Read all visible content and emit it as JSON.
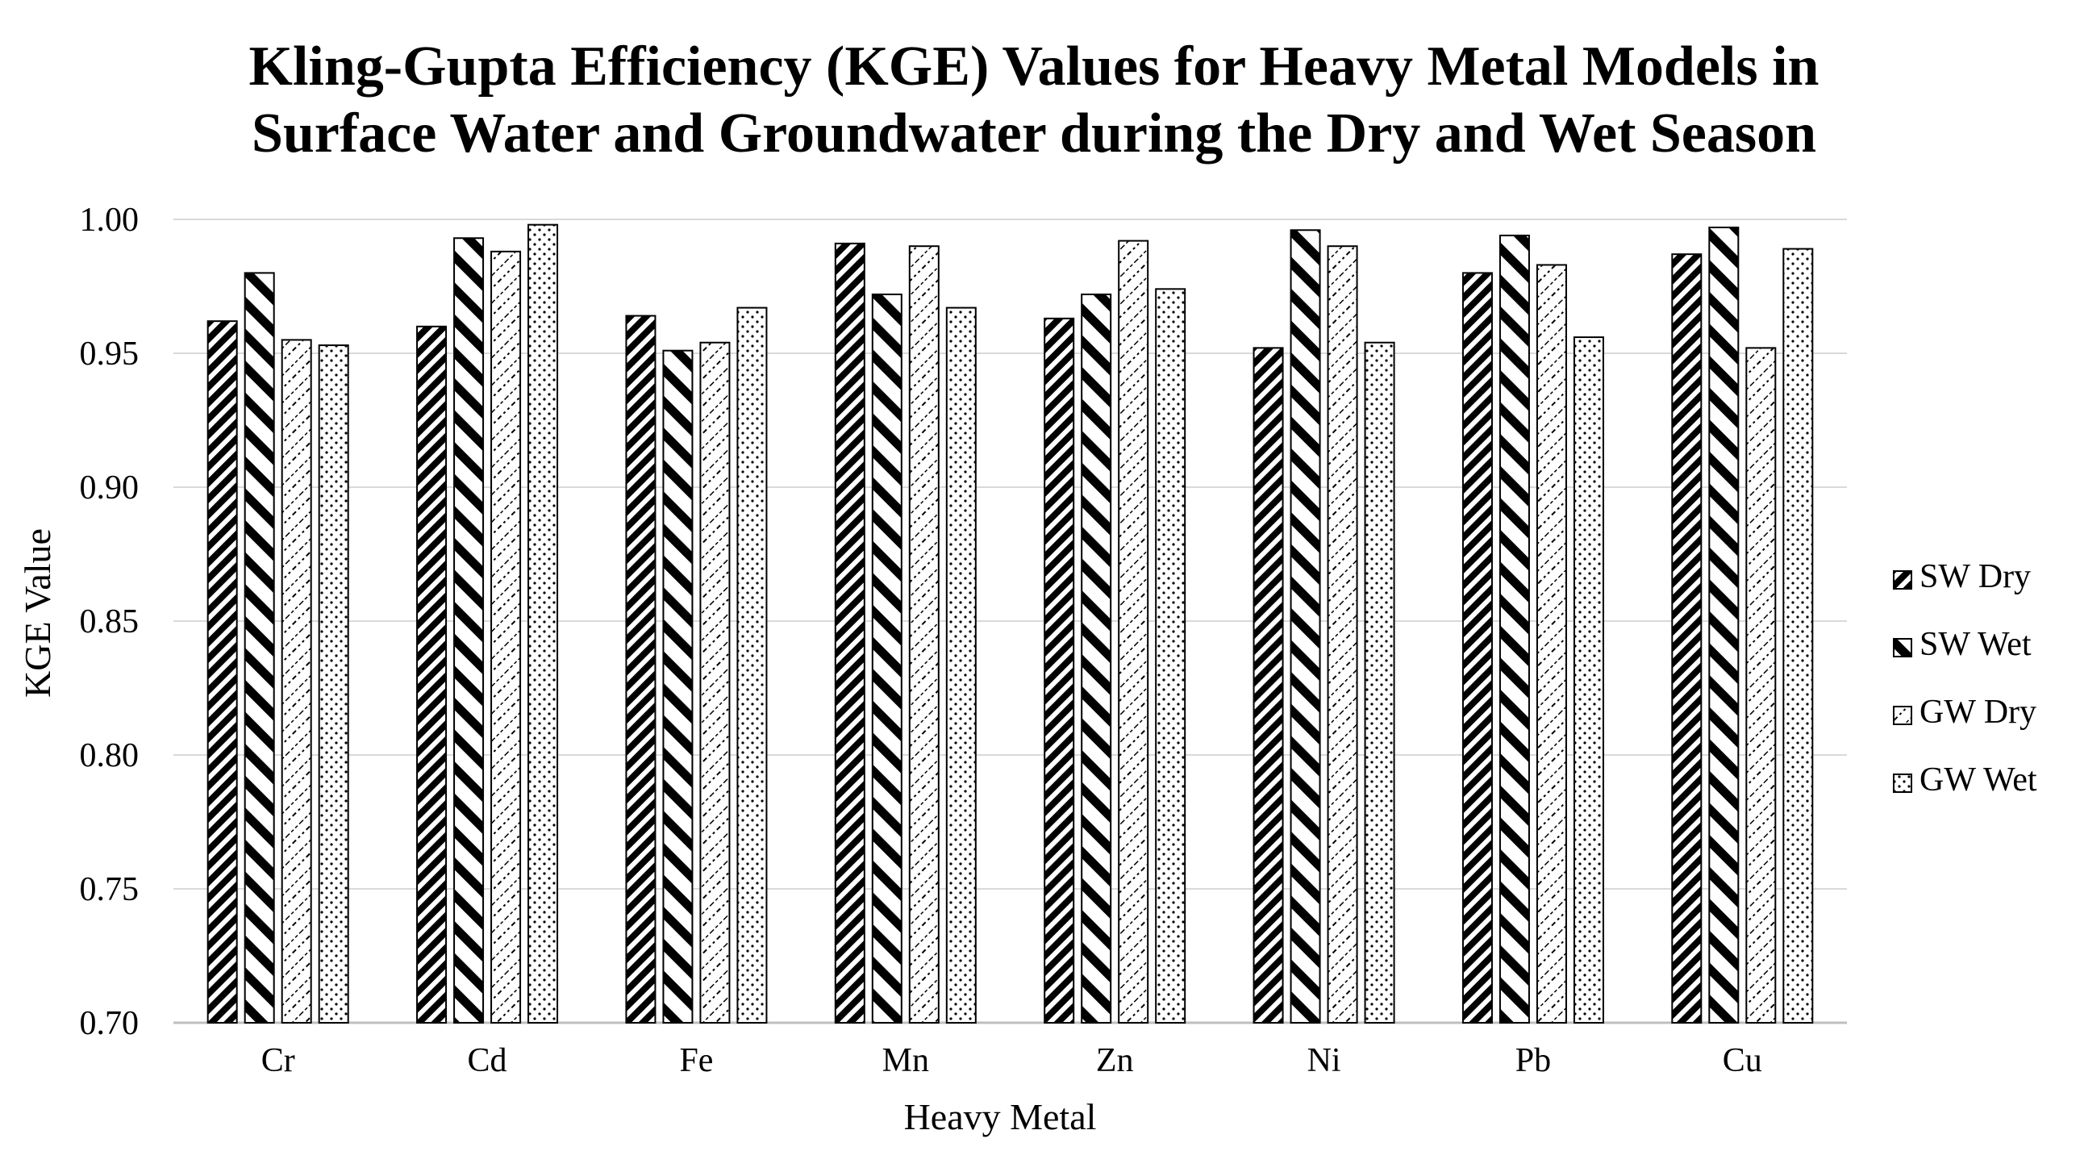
{
  "chart_data": {
    "type": "bar",
    "title": "Kling-Gupta Efficiency (KGE) Values for Heavy Metal Models in Surface Water and Groundwater during the Dry and Wet Season",
    "title_lines": [
      "Kling-Gupta Efficiency (KGE) Values for Heavy Metal Models in",
      "Surface Water and Groundwater during the Dry and Wet Season"
    ],
    "xlabel": "Heavy Metal",
    "ylabel": "KGE Value",
    "ylim": [
      0.7,
      1.0
    ],
    "yticks": [
      "0.70",
      "0.75",
      "0.80",
      "0.85",
      "0.90",
      "0.95",
      "1.00"
    ],
    "grid": true,
    "legend_position": "right",
    "categories": [
      "Cr",
      "Cd",
      "Fe",
      "Mn",
      "Zn",
      "Ni",
      "Pb",
      "Cu"
    ],
    "series": [
      {
        "name": "SW Dry",
        "pattern": "diag-dense",
        "values": [
          0.962,
          0.96,
          0.964,
          0.991,
          0.963,
          0.952,
          0.98,
          0.987
        ]
      },
      {
        "name": "SW Wet",
        "pattern": "diag-wide",
        "values": [
          0.98,
          0.993,
          0.951,
          0.972,
          0.972,
          0.996,
          0.994,
          0.997
        ]
      },
      {
        "name": "GW Dry",
        "pattern": "diag-dashed",
        "values": [
          0.955,
          0.988,
          0.954,
          0.99,
          0.992,
          0.99,
          0.983,
          0.952
        ]
      },
      {
        "name": "GW Wet",
        "pattern": "dots",
        "values": [
          0.953,
          0.998,
          0.967,
          0.967,
          0.974,
          0.954,
          0.956,
          0.989
        ]
      }
    ]
  }
}
